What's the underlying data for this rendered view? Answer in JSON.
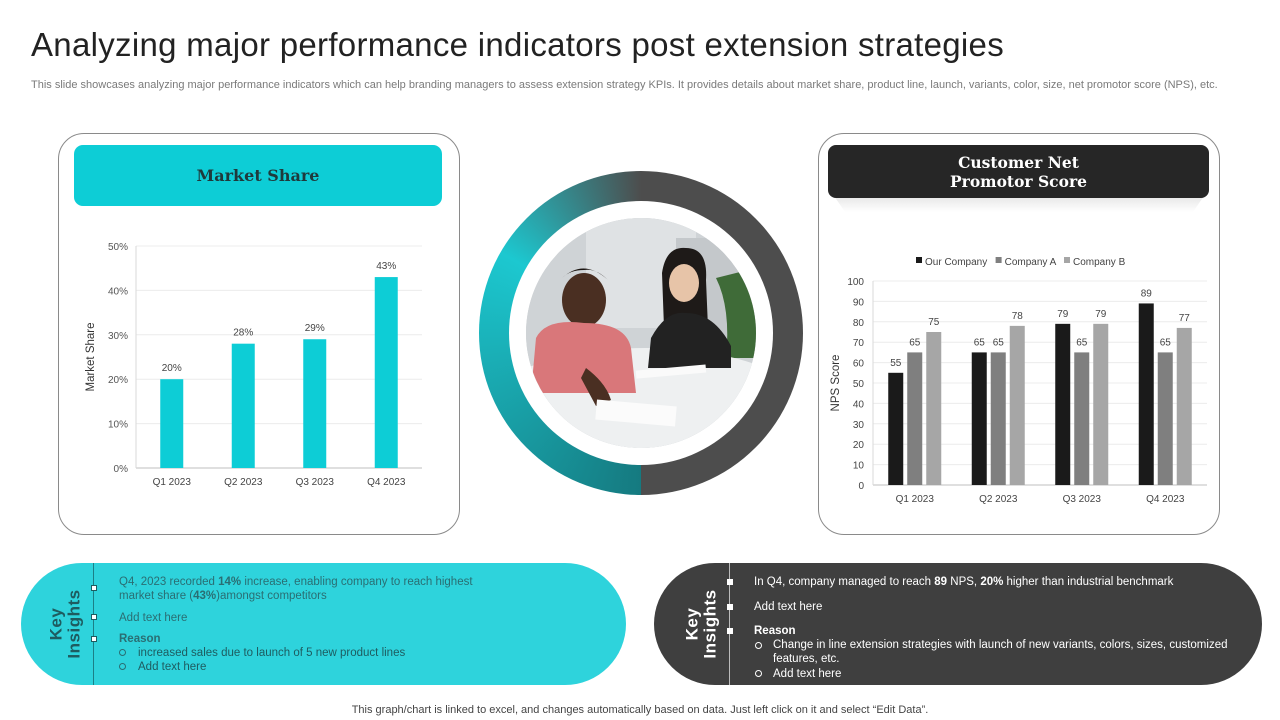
{
  "page": {
    "title": "Analyzing major performance indicators post extension strategies",
    "subtitle": "This slide showcases analyzing major performance indicators which can help branding managers to assess extension strategy KPIs. It provides details about market share, product line, launch, variants, color, size, net promotor score (NPS), etc.",
    "footer": "This graph/chart is linked to excel, and changes automatically based on data. Just left click on it and select “Edit Data”."
  },
  "market_share": {
    "header": "Market Share"
  },
  "nps": {
    "header_line1": "Customer Net",
    "header_line2": "Promotor Score"
  },
  "chart_data": [
    {
      "type": "bar",
      "categories": [
        "Q1 2023",
        "Q2 2023",
        "Q3 2023",
        "Q4 2023"
      ],
      "values": [
        20,
        28,
        29,
        43
      ],
      "value_labels": [
        "20%",
        "28%",
        "29%",
        "43%"
      ],
      "title": "",
      "xlabel": "",
      "ylabel": "Market Share",
      "ylim": [
        0,
        50
      ],
      "yticks": [
        "0%",
        "10%",
        "20%",
        "30%",
        "40%",
        "50%"
      ],
      "grid": true,
      "colors": [
        "#0dcdd6"
      ]
    },
    {
      "type": "bar",
      "categories": [
        "Q1 2023",
        "Q2 2023",
        "Q3 2023",
        "Q4 2023"
      ],
      "series": [
        {
          "name": "Our Company",
          "values": [
            55,
            65,
            79,
            89
          ],
          "color": "#1a1a1a"
        },
        {
          "name": "Company A",
          "values": [
            65,
            65,
            65,
            65
          ],
          "color": "#7f7f7f"
        },
        {
          "name": "Company B",
          "values": [
            75,
            78,
            79,
            77
          ],
          "color": "#a6a6a6"
        }
      ],
      "title": "",
      "xlabel": "",
      "ylabel": "NPS Score",
      "ylim": [
        0,
        100
      ],
      "yticks": [
        "0",
        "10",
        "20",
        "30",
        "40",
        "50",
        "60",
        "70",
        "80",
        "90",
        "100"
      ],
      "legend": "top",
      "grid": true
    }
  ],
  "insights_left": {
    "label": "Key\nInsights",
    "point1_a": "Q4, 2023 recorded ",
    "point1_b": "14%",
    "point1_c": " increase, enabling company to reach highest",
    "point1_d": "market share (",
    "point1_e": "43%",
    "point1_f": ")amongst competitors",
    "point2": "Add text here",
    "reason_heading": "Reason",
    "reasons": [
      "increased sales due to launch of 5 new product lines",
      "Add text here"
    ]
  },
  "insights_right": {
    "label": "Key\nInsights",
    "point1_a": "In Q4, company managed to reach ",
    "point1_b": "89",
    "point1_c": " NPS, ",
    "point1_d": "20%",
    "point1_e": " higher than industrial benchmark",
    "point2": "Add text here",
    "reason_heading": "Reason",
    "reasons": [
      "Change in line extension strategies with launch of new variants, colors, sizes, customized features, etc.",
      "Add text here"
    ]
  },
  "colors": {
    "accent_cyan": "#0dcdd6",
    "dark": "#262626",
    "company_a": "#7f7f7f",
    "company_b": "#a6a6a6"
  }
}
